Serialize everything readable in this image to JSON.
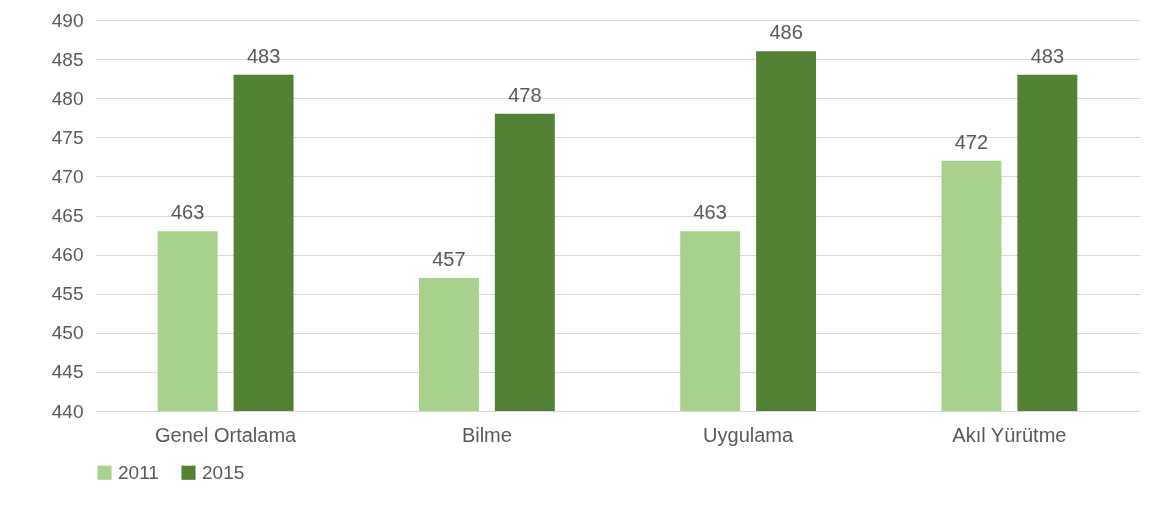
{
  "chart_data": {
    "type": "bar",
    "categories": [
      "Genel Ortalama",
      "Bilme",
      "Uygulama",
      "Akıl Yürütme"
    ],
    "series": [
      {
        "name": "2011",
        "color": "#a9d18e",
        "values": [
          463,
          457,
          463,
          472
        ]
      },
      {
        "name": "2015",
        "color": "#548235",
        "values": [
          483,
          478,
          486,
          483
        ]
      }
    ],
    "ylim": [
      440,
      490
    ],
    "yticks": [
      440,
      445,
      450,
      455,
      460,
      465,
      470,
      475,
      480,
      485,
      490
    ],
    "grid": "y",
    "legend": "bottom",
    "data_labels": true
  }
}
